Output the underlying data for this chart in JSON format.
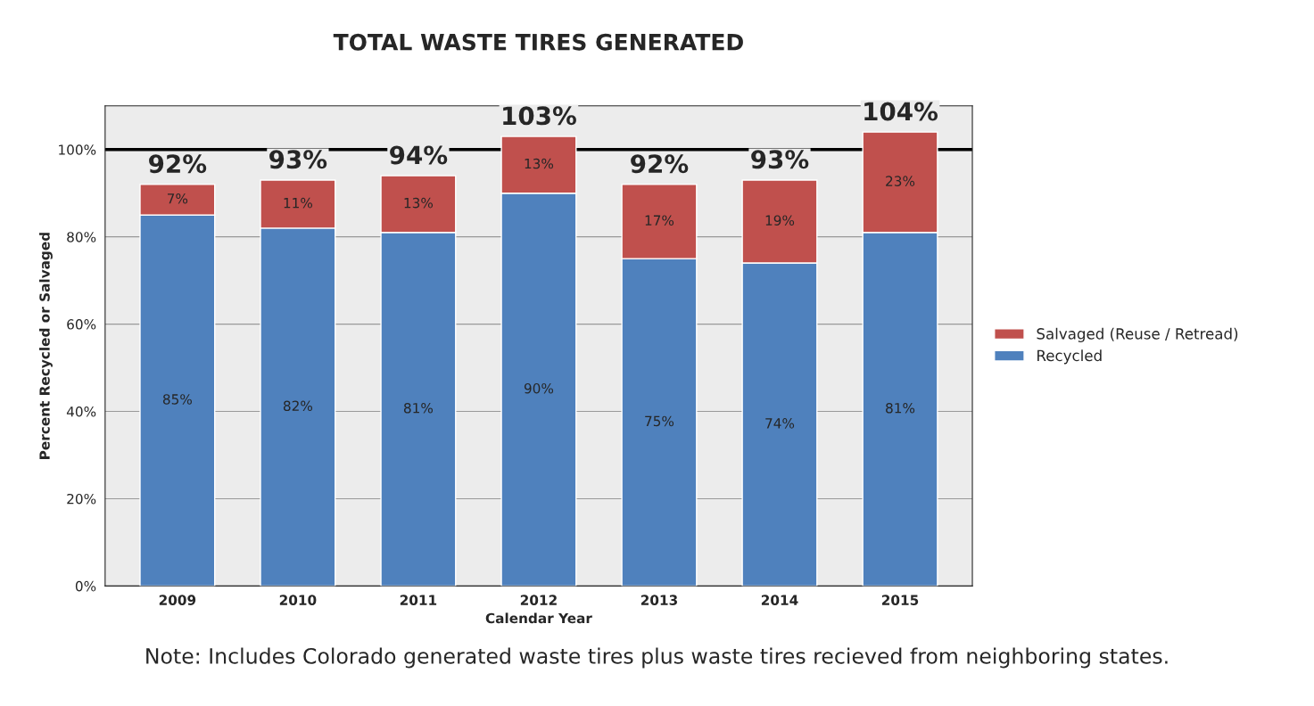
{
  "chart_data": {
    "type": "bar",
    "title": "TOTAL WASTE TIRES GENERATED",
    "xlabel": "Calendar Year",
    "ylabel": "Percent Recycled or Salvaged",
    "categories": [
      "2009",
      "2010",
      "2011",
      "2012",
      "2013",
      "2014",
      "2015"
    ],
    "stacked": true,
    "series": [
      {
        "name": "Recycled",
        "color": "#4f81bd",
        "values": [
          85,
          82,
          81,
          90,
          75,
          74,
          81
        ],
        "value_labels": [
          "85%",
          "82%",
          "81%",
          "90%",
          "75%",
          "74%",
          "81%"
        ]
      },
      {
        "name": "Salvaged (Reuse / Retread)",
        "color": "#c0504d",
        "values": [
          7,
          11,
          13,
          13,
          17,
          19,
          23
        ],
        "value_labels": [
          "7%",
          "11%",
          "13%",
          "13%",
          "17%",
          "19%",
          "23%"
        ]
      }
    ],
    "totals": [
      "92%",
      "93%",
      "94%",
      "103%",
      "92%",
      "93%",
      "104%"
    ],
    "ylim": [
      0,
      110
    ],
    "yticks": [
      {
        "value": 0,
        "label": "0%"
      },
      {
        "value": 20,
        "label": "20%"
      },
      {
        "value": 40,
        "label": "40%"
      },
      {
        "value": 60,
        "label": "60%"
      },
      {
        "value": 80,
        "label": "80%"
      },
      {
        "value": 100,
        "label": "100%"
      }
    ],
    "ref_lines": [
      {
        "axis": "y",
        "value": 100,
        "color": "#000000",
        "line_style": "solid"
      }
    ],
    "grid": "y",
    "legend": "right",
    "annotations": [
      "Note: Includes Colorado generated waste tires plus waste tires recieved from neighboring states."
    ]
  }
}
